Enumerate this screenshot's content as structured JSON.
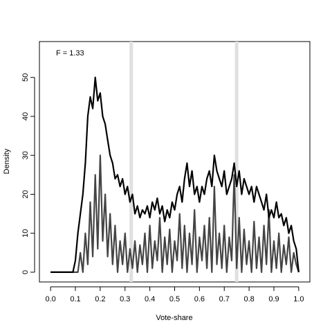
{
  "chart_data": {
    "type": "line",
    "xlabel": "Vote-share",
    "ylabel": "Density",
    "annotation": "F = 1.33",
    "xlim": [
      -0.045,
      1.045
    ],
    "ylim": [
      -2.5,
      59.2
    ],
    "xticks": [
      {
        "value": 0,
        "label": "0.0"
      },
      0.1,
      0.2,
      0.3,
      0.4,
      0.5,
      0.6,
      0.7,
      0.8,
      0.9,
      {
        "value": 1,
        "label": "1.0"
      }
    ],
    "yticks": [
      0,
      10,
      20,
      30,
      40,
      50
    ],
    "vlines": [
      0.325,
      0.75
    ],
    "vline_color": "#e0e0e0",
    "x": [
      0,
      0.01,
      0.02,
      0.03,
      0.04,
      0.05,
      0.06,
      0.07,
      0.08,
      0.09,
      0.1,
      0.11,
      0.12,
      0.13,
      0.14,
      0.15,
      0.16,
      0.17,
      0.18,
      0.19,
      0.2,
      0.21,
      0.22,
      0.23,
      0.24,
      0.25,
      0.26,
      0.27,
      0.28,
      0.29,
      0.3,
      0.31,
      0.32,
      0.33,
      0.34,
      0.35,
      0.36,
      0.37,
      0.38,
      0.39,
      0.4,
      0.41,
      0.42,
      0.43,
      0.44,
      0.45,
      0.46,
      0.47,
      0.48,
      0.49,
      0.5,
      0.51,
      0.52,
      0.53,
      0.54,
      0.55,
      0.56,
      0.57,
      0.58,
      0.59,
      0.6,
      0.61,
      0.62,
      0.63,
      0.64,
      0.65,
      0.66,
      0.67,
      0.68,
      0.69,
      0.7,
      0.71,
      0.72,
      0.73,
      0.74,
      0.75,
      0.76,
      0.77,
      0.78,
      0.79,
      0.8,
      0.81,
      0.82,
      0.83,
      0.84,
      0.85,
      0.86,
      0.87,
      0.88,
      0.89,
      0.9,
      0.91,
      0.92,
      0.93,
      0.94,
      0.95,
      0.96,
      0.97,
      0.98,
      0.99,
      1
    ],
    "series": [
      {
        "color": "#000000",
        "values": [
          0,
          0,
          0,
          0,
          0,
          0,
          0,
          0,
          0,
          0,
          3,
          10,
          15,
          20,
          28,
          40,
          45,
          42,
          50,
          44,
          46,
          40,
          38,
          34,
          30,
          28,
          24,
          25,
          22,
          24,
          20,
          22,
          18,
          20,
          15,
          17,
          14,
          16,
          15,
          17,
          14,
          18,
          16,
          19,
          15,
          17,
          13,
          16,
          14,
          18,
          16,
          20,
          22,
          18,
          24,
          28,
          22,
          26,
          20,
          22,
          18,
          22,
          20,
          24,
          26,
          22,
          30,
          26,
          24,
          22,
          26,
          20,
          22,
          24,
          28,
          22,
          26,
          20,
          24,
          22,
          20,
          22,
          18,
          22,
          20,
          18,
          16,
          20,
          14,
          16,
          14,
          18,
          14,
          15,
          12,
          14,
          10,
          12,
          8,
          6,
          0
        ]
      },
      {
        "color": "#444444",
        "values": [
          0,
          0,
          0,
          0,
          0,
          0,
          0,
          0,
          0,
          0,
          0,
          0,
          5,
          0,
          10,
          2,
          18,
          4,
          25,
          6,
          30,
          8,
          20,
          4,
          15,
          2,
          12,
          0,
          8,
          2,
          10,
          0,
          6,
          1,
          8,
          0,
          7,
          2,
          10,
          0,
          12,
          1,
          8,
          3,
          14,
          0,
          9,
          2,
          11,
          0,
          8,
          3,
          15,
          1,
          12,
          0,
          10,
          2,
          16,
          0,
          9,
          3,
          12,
          1,
          14,
          0,
          22,
          2,
          10,
          1,
          12,
          0,
          9,
          3,
          25,
          1,
          14,
          0,
          11,
          2,
          8,
          0,
          13,
          1,
          9,
          0,
          12,
          2,
          16,
          0,
          8,
          1,
          10,
          0,
          7,
          2,
          9,
          0,
          5,
          2,
          0
        ]
      }
    ]
  }
}
